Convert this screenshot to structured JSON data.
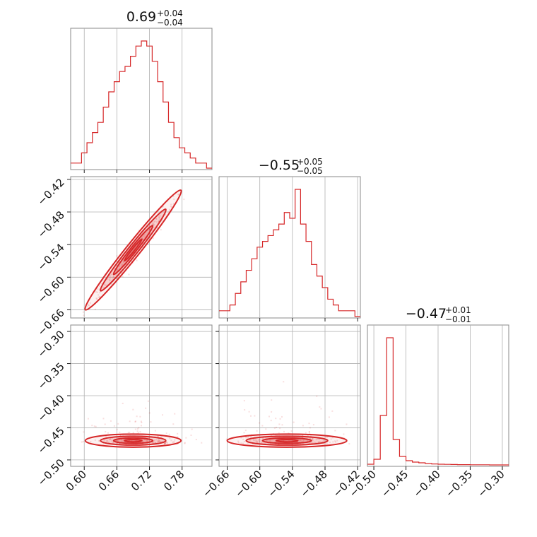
{
  "chart_data": {
    "type": "corner",
    "color": "#d62728",
    "parameters": [
      {
        "index": 0,
        "median": "0.69",
        "plus": "+0.04",
        "minus": "−0.04",
        "range": [
          0.575,
          0.835
        ],
        "ticks": [
          0.6,
          0.66,
          0.72,
          0.78
        ],
        "tick_labels": [
          "0.60",
          "0.66",
          "0.72",
          "0.78"
        ],
        "hist_bins": [
          0.575,
          0.585,
          0.595,
          0.605,
          0.615,
          0.625,
          0.635,
          0.645,
          0.655,
          0.665,
          0.675,
          0.685,
          0.695,
          0.705,
          0.715,
          0.725,
          0.735,
          0.745,
          0.755,
          0.765,
          0.775,
          0.785,
          0.795,
          0.805,
          0.815,
          0.825,
          0.835
        ],
        "hist_counts": [
          1,
          1,
          3,
          5,
          7,
          9,
          12,
          15,
          17,
          19,
          20,
          22,
          24,
          25,
          24,
          21,
          17,
          13,
          9,
          6,
          4,
          3,
          2,
          1,
          1,
          0
        ]
      },
      {
        "index": 1,
        "median": "−0.55",
        "plus": "+0.05",
        "minus": "−0.05",
        "range": [
          -0.675,
          -0.415
        ],
        "ticks": [
          -0.66,
          -0.6,
          -0.54,
          -0.48,
          -0.42
        ],
        "tick_labels": [
          "−0.66",
          "−0.60",
          "−0.54",
          "−0.48",
          "−0.42"
        ],
        "hist_bins": [
          -0.675,
          -0.665,
          -0.655,
          -0.645,
          -0.635,
          -0.625,
          -0.615,
          -0.605,
          -0.595,
          -0.585,
          -0.575,
          -0.565,
          -0.555,
          -0.545,
          -0.535,
          -0.525,
          -0.515,
          -0.505,
          -0.495,
          -0.485,
          -0.475,
          -0.465,
          -0.455,
          -0.445,
          -0.435,
          -0.425,
          -0.415
        ],
        "hist_counts": [
          1,
          1,
          2,
          4,
          6,
          8,
          10,
          12,
          13,
          14,
          15,
          16,
          18,
          17,
          22,
          16,
          13,
          9,
          7,
          5,
          3,
          2,
          1,
          1,
          1,
          0
        ]
      },
      {
        "index": 2,
        "median": "−0.47",
        "plus": "+0.01",
        "minus": "−0.01",
        "range": [
          -0.51,
          -0.29
        ],
        "ticks": [
          -0.5,
          -0.45,
          -0.4,
          -0.35,
          -0.3
        ],
        "tick_labels": [
          "−0.50",
          "−0.45",
          "−0.40",
          "−0.35",
          "−0.30"
        ],
        "hist_bins": [
          -0.51,
          -0.5,
          -0.49,
          -0.48,
          -0.47,
          -0.46,
          -0.45,
          -0.44,
          -0.43,
          -0.42,
          -0.41,
          -0.4,
          -0.39,
          -0.38,
          -0.37,
          -0.36,
          -0.35,
          -0.34,
          -0.33,
          -0.32,
          -0.31,
          -0.3,
          -0.29
        ],
        "hist_counts": [
          0.5,
          4,
          35,
          90,
          18,
          6,
          3,
          2,
          1.5,
          1,
          0.7,
          0.5,
          0.4,
          0.3,
          0.2,
          0.2,
          0.1,
          0.1,
          0.1,
          0,
          0,
          0
        ]
      }
    ],
    "pairs": [
      {
        "x": 0,
        "y": 1,
        "correlation": "strong positive, linear ridge",
        "center": [
          0.69,
          -0.55
        ]
      },
      {
        "x": 0,
        "y": 2,
        "correlation": "weak, horizontal band",
        "center": [
          0.69,
          -0.47
        ]
      },
      {
        "x": 1,
        "y": 2,
        "correlation": "weak, horizontal band",
        "center": [
          -0.55,
          -0.47
        ]
      }
    ]
  }
}
